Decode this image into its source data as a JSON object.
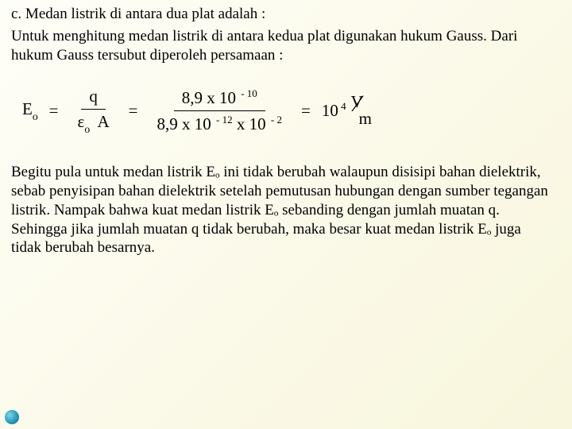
{
  "text": {
    "p1": "c. Medan listrik di antara dua plat adalah :",
    "p2": "Untuk menghitung medan listrik di antara kedua plat digunakan hukum Gauss. Dari hukum Gauss tersubut diperoleh persamaan :",
    "p3": "Begitu pula untuk medan listrik Eₒ ini tidak berubah walaupun disisipi bahan dielektrik, sebab penyisipan bahan dielektrik setelah pemutusan hubungan dengan sumber tegangan listrik. Nampak bahwa kuat medan listrik Eₒ sebanding dengan jumlah muatan q. Sehingga jika jumlah muatan q tidak berubah, maka besar kuat medan listrik Eₒ juga tidak berubah besarnya."
  },
  "equation": {
    "lhs_sym": "E",
    "lhs_sub": "o",
    "eq": "=",
    "frac1_num": "q",
    "frac1_den_eps": "ε",
    "frac1_den_sub": "o",
    "frac1_den_A": "  A",
    "frac2_num_a": "8,9 x 10",
    "frac2_num_exp": " - 10",
    "frac2_den_a": "8,9 x 10",
    "frac2_den_exp1": " - 12",
    "frac2_den_b": " x 10",
    "frac2_den_exp2": " - 2",
    "rhs_a": "10",
    "rhs_exp": " 4",
    "unit_v": "V",
    "unit_m": "m"
  },
  "style": {
    "fontsize_body": 19,
    "fontsize_eq": 21,
    "color_text": "#000000",
    "bg_gradient_from": "#fefef8",
    "bg_gradient_to": "#f8f6dc",
    "bullet_gradient": [
      "#7fd4e8",
      "#2a9bb8",
      "#0d5c73"
    ]
  }
}
